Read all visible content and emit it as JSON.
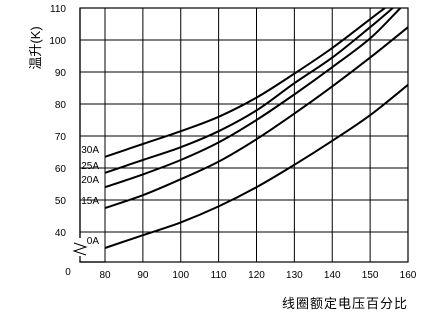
{
  "chart_data": {
    "type": "line",
    "title": "",
    "ylabel": "温升(K)",
    "xlabel": "线圈额定电压百分比",
    "x_ticks": [
      80,
      90,
      100,
      110,
      120,
      130,
      140,
      150,
      160
    ],
    "x_origin_label": "0",
    "y_ticks": [
      40,
      50,
      60,
      70,
      80,
      90,
      100,
      110
    ],
    "xlim": [
      80,
      160
    ],
    "ylim": [
      33,
      110
    ],
    "axis_break": true,
    "grid": true,
    "series": [
      {
        "name": "30A",
        "points": [
          [
            80,
            63.5
          ],
          [
            90,
            67.5
          ],
          [
            100,
            71.5
          ],
          [
            110,
            76
          ],
          [
            120,
            82
          ],
          [
            130,
            89.5
          ],
          [
            140,
            97.5
          ],
          [
            150,
            106.5
          ],
          [
            155,
            111
          ]
        ]
      },
      {
        "name": "25A",
        "points": [
          [
            80,
            58.5
          ],
          [
            90,
            62.5
          ],
          [
            100,
            66.5
          ],
          [
            110,
            71.5
          ],
          [
            120,
            78
          ],
          [
            130,
            86.5
          ],
          [
            140,
            94.5
          ],
          [
            150,
            104
          ],
          [
            156,
            110
          ]
        ]
      },
      {
        "name": "20A",
        "points": [
          [
            80,
            54
          ],
          [
            90,
            58
          ],
          [
            100,
            62.5
          ],
          [
            110,
            68
          ],
          [
            120,
            75
          ],
          [
            130,
            83
          ],
          [
            140,
            91.5
          ],
          [
            150,
            100.5
          ],
          [
            158,
            110
          ]
        ]
      },
      {
        "name": "15A",
        "points": [
          [
            80,
            47.5
          ],
          [
            90,
            51.5
          ],
          [
            100,
            56.5
          ],
          [
            110,
            62
          ],
          [
            120,
            69
          ],
          [
            130,
            77
          ],
          [
            140,
            85.5
          ],
          [
            150,
            94.5
          ],
          [
            160,
            104
          ]
        ]
      },
      {
        "name": "0A",
        "points": [
          [
            80,
            35
          ],
          [
            90,
            39
          ],
          [
            100,
            43
          ],
          [
            110,
            48
          ],
          [
            120,
            54
          ],
          [
            130,
            61
          ],
          [
            140,
            68.5
          ],
          [
            150,
            76.5
          ],
          [
            160,
            86
          ]
        ]
      }
    ]
  }
}
